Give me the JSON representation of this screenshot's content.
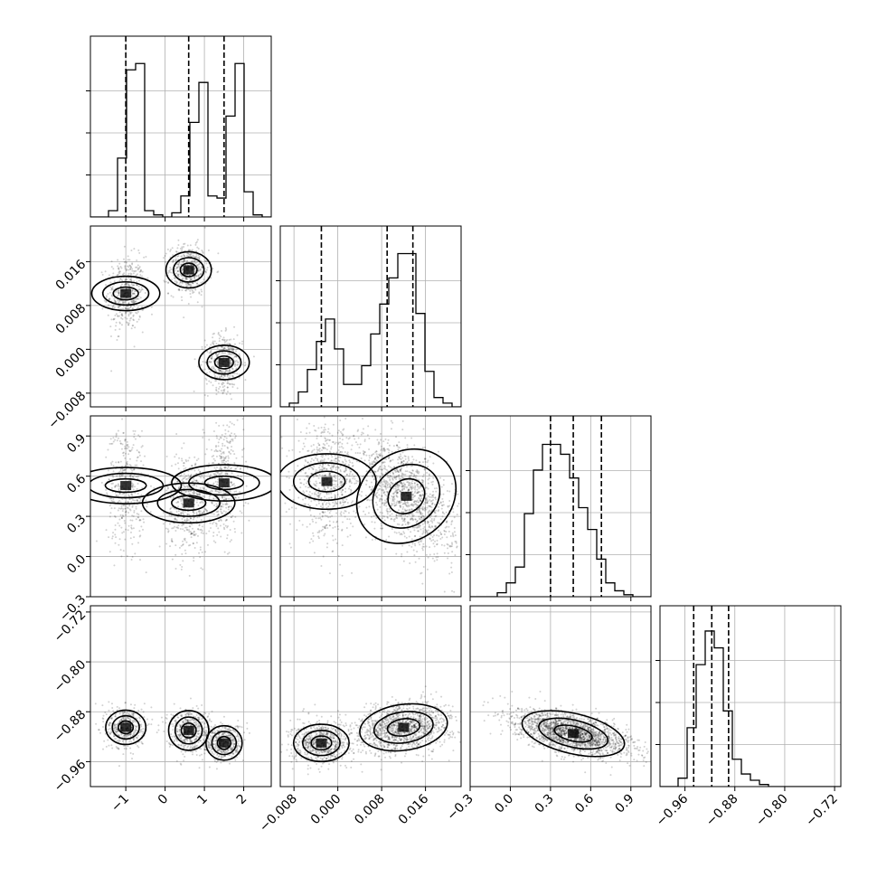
{
  "chart_data": {
    "type": "corner",
    "num_params": 4,
    "grid": true,
    "param_ranges": [
      [
        -1.9,
        2.7
      ],
      [
        -0.0105,
        0.0225
      ],
      [
        -0.3,
        1.05
      ],
      [
        -1.0,
        -0.71
      ]
    ],
    "ticks": [
      {
        "values": [
          -1,
          0,
          1,
          2
        ],
        "labels": [
          "−1",
          "0",
          "1",
          "2"
        ]
      },
      {
        "values": [
          -0.008,
          0.0,
          0.008,
          0.016
        ],
        "labels": [
          "−0.008",
          "0.000",
          "0.008",
          "0.016"
        ]
      },
      {
        "values": [
          -0.3,
          0.0,
          0.3,
          0.6,
          0.9
        ],
        "labels": [
          "−0.3",
          "0.0",
          "0.3",
          "0.6",
          "0.9"
        ]
      },
      {
        "values": [
          -0.96,
          -0.88,
          -0.8,
          -0.72
        ],
        "labels": [
          "−0.96",
          "−0.88",
          "−0.80",
          "−0.72"
        ]
      }
    ],
    "quantiles": [
      [
        -1.0,
        0.6,
        1.5
      ],
      [
        -0.003,
        0.009,
        0.0137
      ],
      [
        0.3,
        0.47,
        0.68
      ],
      [
        -0.946,
        -0.917,
        -0.89
      ]
    ],
    "histograms": [
      {
        "edges_start": -1.9,
        "bin_width": 0.23,
        "counts": [
          0,
          0,
          3,
          28,
          70,
          73,
          3,
          1,
          0,
          2,
          10,
          45,
          64,
          10,
          9,
          48,
          73,
          12,
          1,
          0
        ]
      },
      {
        "edges_start": -0.0105,
        "bin_width": 0.00165,
        "counts": [
          0,
          2,
          8,
          20,
          35,
          47,
          31,
          12,
          12,
          22,
          39,
          55,
          69,
          82,
          82,
          50,
          19,
          5,
          2,
          0
        ]
      },
      {
        "edges_start": -0.3,
        "bin_width": 0.0675,
        "counts": [
          0,
          0,
          0,
          2,
          7,
          15,
          42,
          64,
          77,
          77,
          72,
          60,
          45,
          34,
          19,
          7,
          3,
          1,
          0,
          0
        ]
      },
      {
        "edges_start": -1.0,
        "bin_width": 0.0145,
        "counts": [
          0,
          0,
          4,
          28,
          58,
          74,
          66,
          36,
          13,
          6,
          3,
          1,
          0,
          0,
          0,
          0,
          0,
          0,
          0,
          0
        ]
      }
    ],
    "blobs": {
      "1,0": [
        {
          "x": -1.0,
          "y": 0.0102,
          "sx": 0.19,
          "sy": 0.0027,
          "rho": 0.0,
          "n": 450
        },
        {
          "x": 0.6,
          "y": 0.0145,
          "sx": 0.2,
          "sy": 0.0018,
          "rho": 0.0,
          "n": 500
        },
        {
          "x": 1.5,
          "y": -0.0024,
          "sx": 0.19,
          "sy": 0.002,
          "rho": 0.0,
          "n": 450
        }
      ],
      "2,0": [
        {
          "x": -1.0,
          "y": 0.53,
          "sx": 0.2,
          "sy": 0.18,
          "rho": 0.0,
          "n": 430
        },
        {
          "x": 0.6,
          "y": 0.4,
          "sx": 0.22,
          "sy": 0.15,
          "rho": 0.0,
          "n": 500
        },
        {
          "x": 1.5,
          "y": 0.55,
          "sx": 0.2,
          "sy": 0.17,
          "rho": 0.0,
          "n": 430
        }
      ],
      "3,0": [
        {
          "x": -1.0,
          "y": -0.905,
          "sx": 0.19,
          "sy": 0.014,
          "rho": 0.0,
          "n": 450
        },
        {
          "x": 0.6,
          "y": -0.91,
          "sx": 0.22,
          "sy": 0.014,
          "rho": 0.0,
          "n": 480
        },
        {
          "x": 1.5,
          "y": -0.93,
          "sx": 0.2,
          "sy": 0.012,
          "rho": 0.0,
          "n": 450
        }
      ],
      "2,1": [
        {
          "x": -0.002,
          "y": 0.56,
          "sx": 0.0022,
          "sy": 0.16,
          "rho": 0.0,
          "n": 700
        },
        {
          "x": 0.0125,
          "y": 0.45,
          "sx": 0.0035,
          "sy": 0.17,
          "rho": -0.55,
          "n": 1300
        }
      ],
      "3,1": [
        {
          "x": -0.003,
          "y": -0.93,
          "sx": 0.0022,
          "sy": 0.013,
          "rho": 0.0,
          "n": 700
        },
        {
          "x": 0.012,
          "y": -0.905,
          "sx": 0.0035,
          "sy": 0.016,
          "rho": 0.2,
          "n": 1300
        }
      ],
      "3,2": [
        {
          "x": 0.47,
          "y": -0.915,
          "sx": 0.17,
          "sy": 0.014,
          "rho": -0.55,
          "n": 2000
        }
      ]
    },
    "contour_levels": [
      0.11,
      0.4,
      0.8
    ],
    "contour_fill_alphas": [
      0.06,
      0.12,
      0.22
    ],
    "histogram_scale": [
      80,
      90,
      85,
      80
    ]
  }
}
